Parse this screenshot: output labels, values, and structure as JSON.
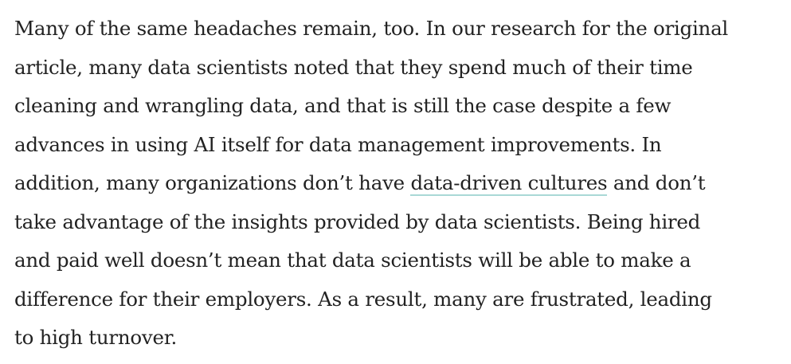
{
  "article": {
    "paragraph": {
      "line1": "Many of the same headaches remain, too. In our research for the original",
      "line2": "article, many data scientists noted that they spend much of their time",
      "line3": "cleaning and wrangling data, and that is still the case despite a few",
      "line4": "advances in using AI itself for data management improvements. In",
      "line5_before_link": "addition, many organizations don’t have ",
      "link_text": "data-driven cultures",
      "line5_after_link": " and don’t",
      "line6": "take advantage of the insights provided by data scientists. Being hired",
      "line7": "and paid well doesn’t mean that data scientists will be able to make a",
      "line8": "difference for their employers. As a result, many are frustrated, leading",
      "line9": "to high turnover."
    },
    "colors": {
      "text": "#222222",
      "link_underline": "#a9d8d6",
      "background": "#ffffff"
    }
  }
}
